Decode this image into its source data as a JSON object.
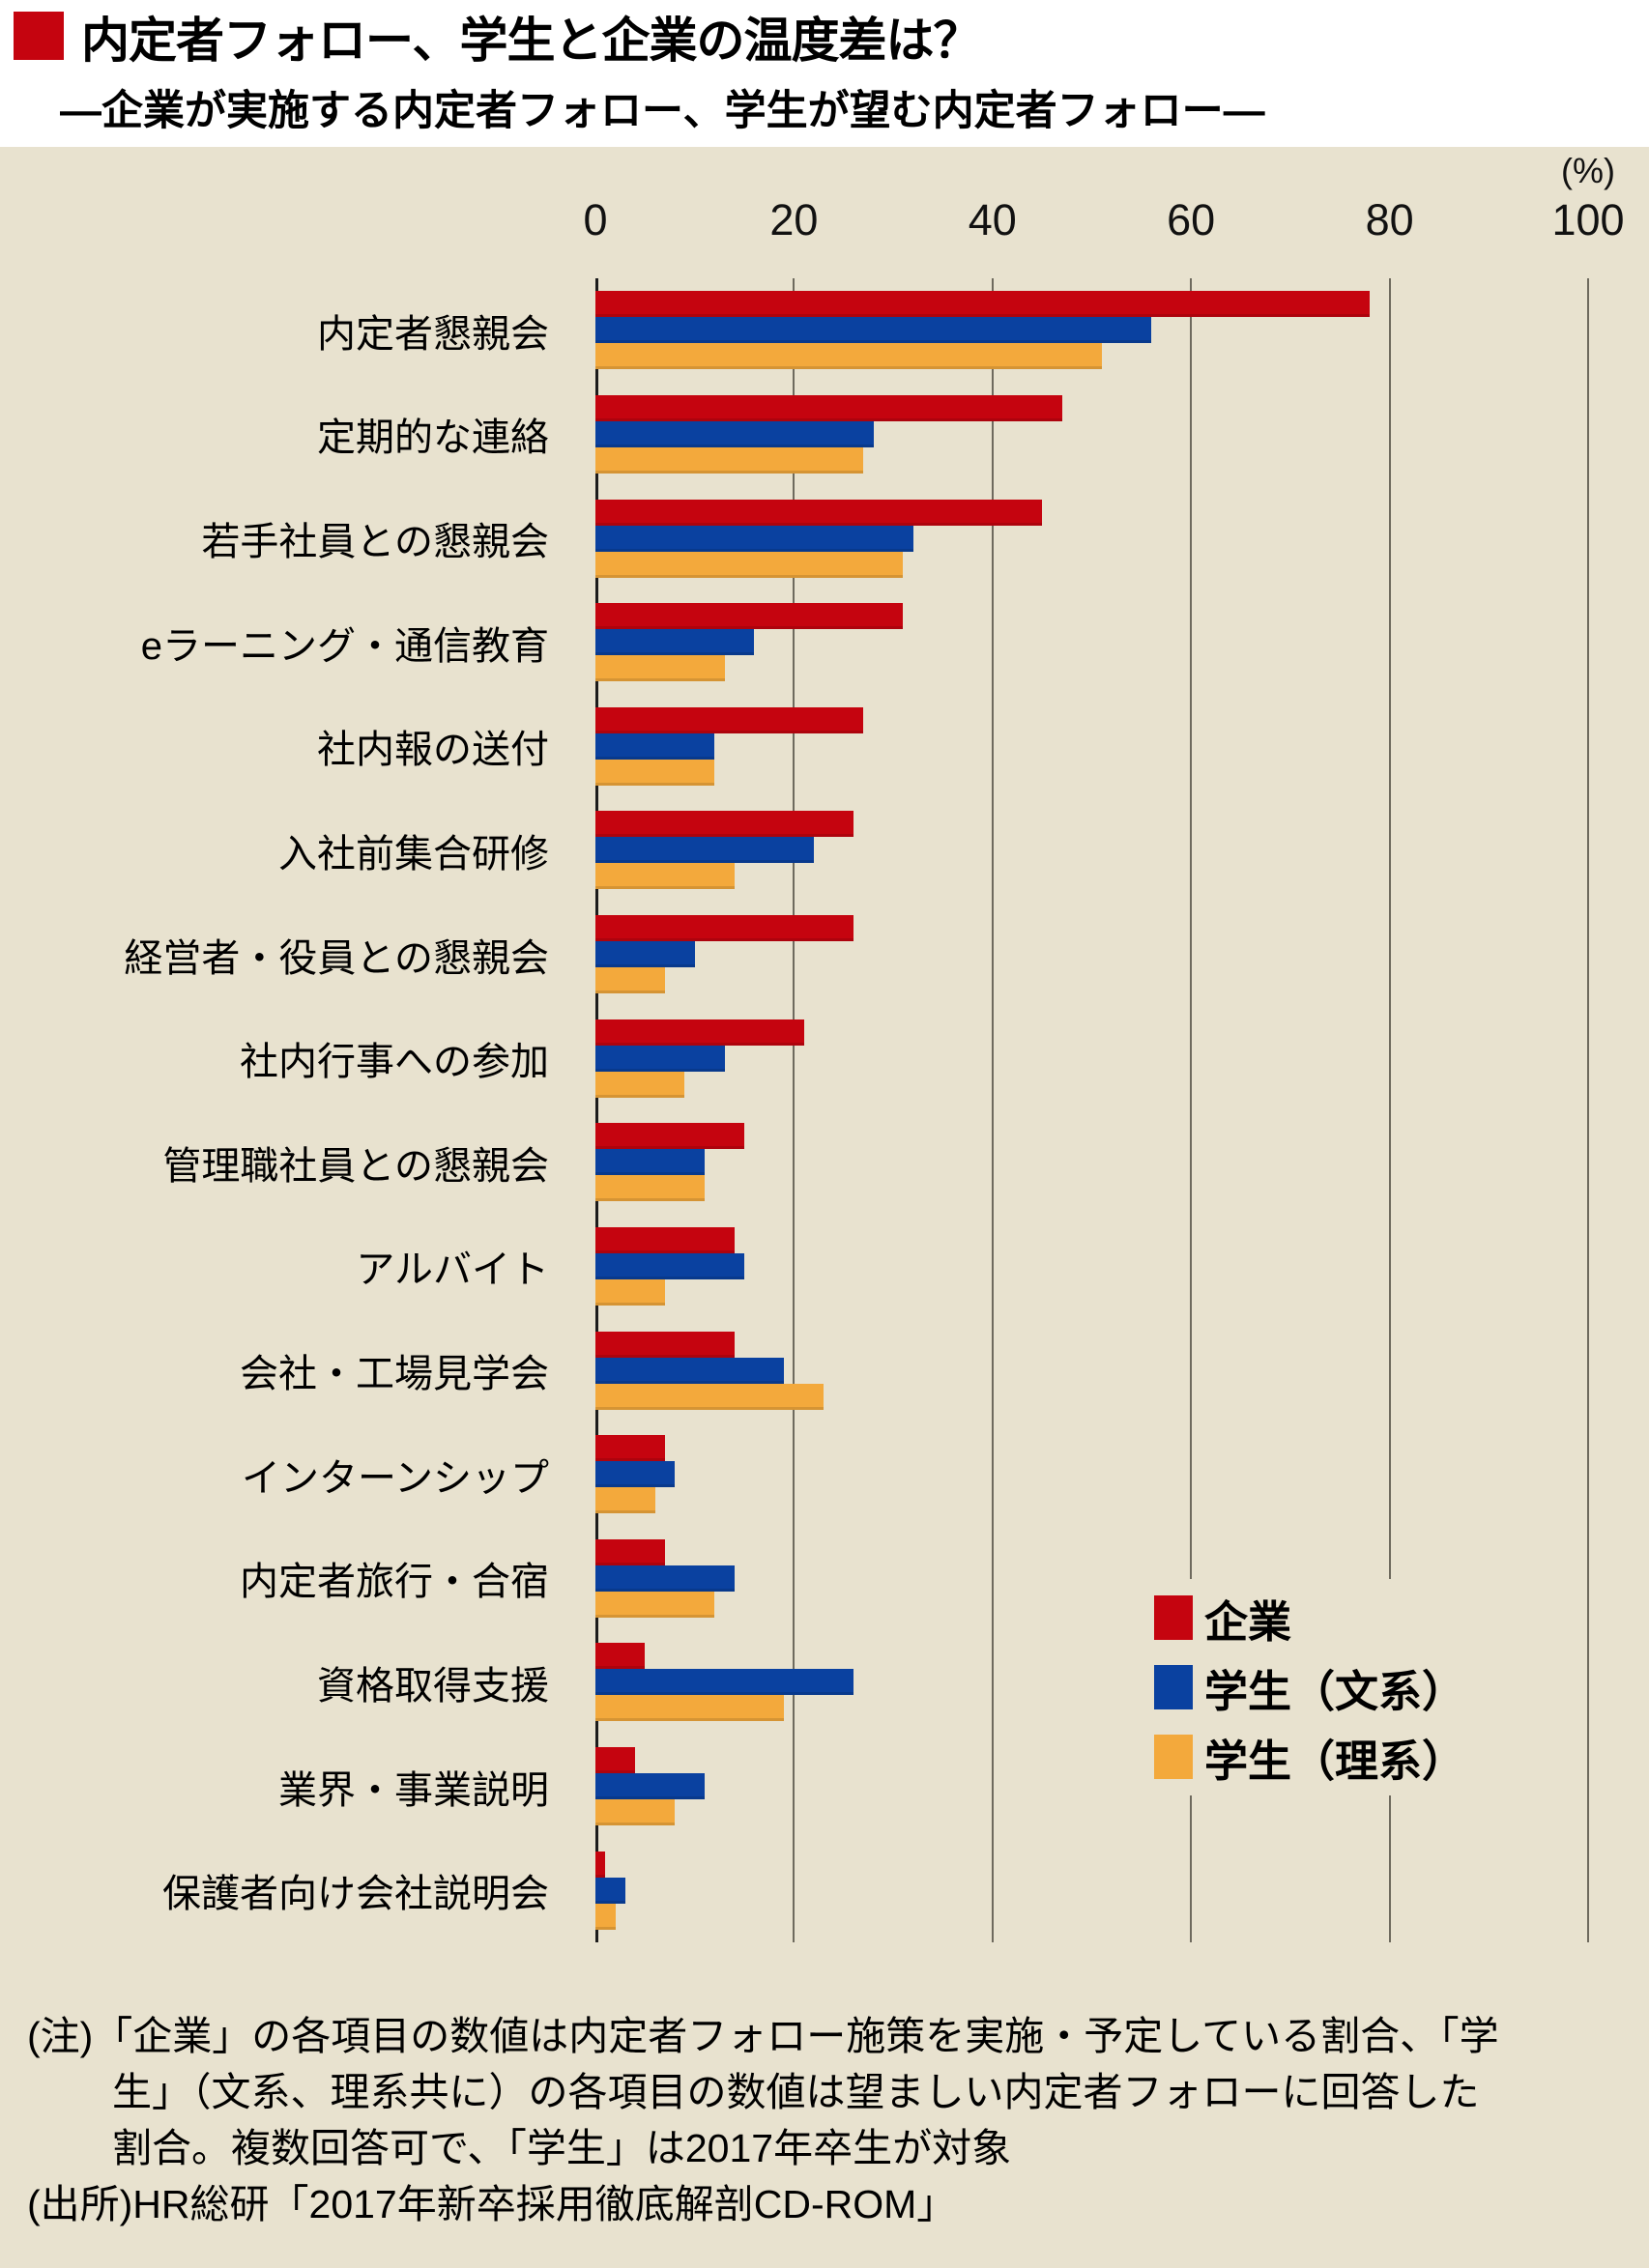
{
  "header": {
    "title": "内定者フォロー、学生と企業の温度差は？",
    "subtitle": "―企業が実施する内定者フォロー、学生が望む内定者フォロー―"
  },
  "axis": {
    "unit_label": "(%)",
    "ticks": [
      "0",
      "20",
      "40",
      "60",
      "80",
      "100"
    ]
  },
  "chart_data": {
    "type": "bar",
    "orientation": "horizontal",
    "title": "企業が実施する内定者フォロー、学生が望む内定者フォロー",
    "xlabel": "(%)",
    "xlim": [
      0,
      100
    ],
    "grid": true,
    "legend_position": "inside-lower-right",
    "categories": [
      "内定者懇親会",
      "定期的な連絡",
      "若手社員との懇親会",
      "eラーニング・通信教育",
      "社内報の送付",
      "入社前集合研修",
      "経営者・役員との懇親会",
      "社内行事への参加",
      "管理職社員との懇親会",
      "アルバイト",
      "会社・工場見学会",
      "インターンシップ",
      "内定者旅行・合宿",
      "資格取得支援",
      "業界・事業説明",
      "保護者向け会社説明会"
    ],
    "series": [
      {
        "name": "企業",
        "color": "#c5040f",
        "values": [
          78,
          47,
          45,
          31,
          27,
          26,
          26,
          21,
          15,
          14,
          14,
          7,
          7,
          5,
          4,
          1
        ]
      },
      {
        "name": "学生（文系）",
        "color": "#0a41a0",
        "values": [
          56,
          28,
          32,
          16,
          12,
          22,
          10,
          13,
          11,
          15,
          19,
          8,
          14,
          26,
          11,
          3
        ]
      },
      {
        "name": "学生（理系）",
        "color": "#f3a93c",
        "values": [
          51,
          27,
          31,
          13,
          12,
          14,
          7,
          9,
          11,
          7,
          23,
          6,
          12,
          19,
          8,
          2
        ]
      }
    ]
  },
  "notes": {
    "lines": [
      "(注)「企業」の各項目の数値は内定者フォロー施策を実施・予定している割合、「学",
      "生」（文系、理系共に）の各項目の数値は望ましい内定者フォローに回答した",
      "割合。複数回答可で、「学生」は2017年卒生が対象",
      "(出所)HR総研「2017年新卒採用徹底解剖CD-ROM」"
    ]
  },
  "colors": {
    "accent_red": "#c5040f",
    "series_blue": "#0a41a0",
    "series_orange": "#f3a93c",
    "panel_background": "#e8e2cf",
    "gridline": "#6e6a5e",
    "zero_axis": "#1c1c1c"
  }
}
